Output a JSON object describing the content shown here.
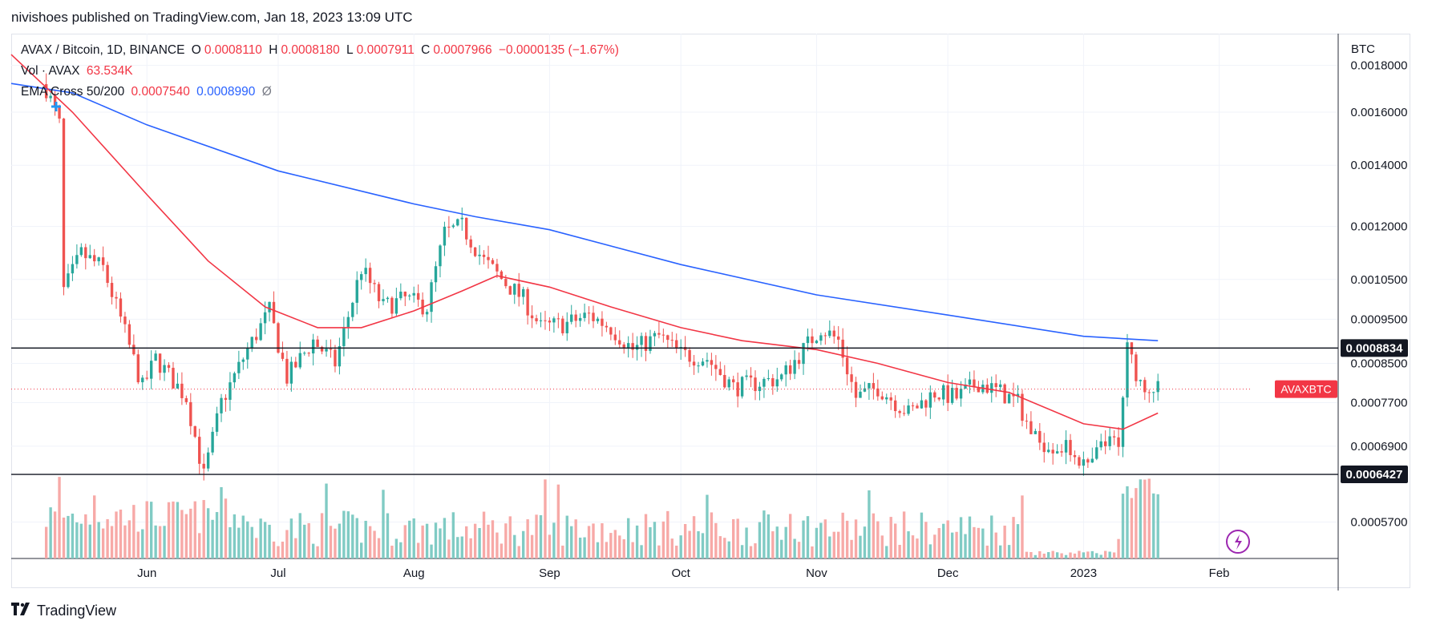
{
  "header": {
    "published": "nivishoes published on TradingView.com, Jan 18, 2023 13:09 UTC"
  },
  "legend": {
    "symbol": "AVAX / Bitcoin, 1D, BINANCE",
    "o_label": "O",
    "o_value": "0.0008110",
    "h_label": "H",
    "h_value": "0.0008180",
    "l_label": "L",
    "l_value": "0.0007911",
    "c_label": "C",
    "c_value": "0.0007966",
    "change": "−0.0000135 (−1.67%)",
    "vol_label": "Vol · AVAX",
    "vol_value": "63.534K",
    "ema_label": "EMA Cross 50/200",
    "ema50_value": "0.0007540",
    "ema200_value": "0.0008990",
    "ema_extra": "Ø"
  },
  "footer": {
    "brand": "TradingView"
  },
  "chart_data": {
    "type": "candlestick",
    "symbol": "AVAXBTC",
    "currency_label": "BTC",
    "scale": "log",
    "ylim": [
      0.00052,
      0.00195
    ],
    "y_ticks": [
      "0.0018000",
      "0.0016000",
      "0.0014000",
      "0.0012000",
      "0.0010500",
      "0.0009500",
      "0.0008500",
      "0.0007700",
      "0.0006900",
      "0.0005700"
    ],
    "x_ticks": [
      "Jun",
      "Jul",
      "Aug",
      "Sep",
      "Oct",
      "Nov",
      "Dec",
      "2023",
      "Feb"
    ],
    "horizontal_lines": [
      {
        "value": 0.0008834,
        "label": "0.0008834"
      },
      {
        "value": 0.0006427,
        "label": "0.0006427"
      }
    ],
    "last_price": {
      "value": 0.0007966,
      "label": "AVAXBTC"
    },
    "colors": {
      "up": "#26a69a",
      "down": "#ef5350",
      "ema50": "#f23645",
      "ema200": "#2962ff",
      "vol_up": "#80cbc4",
      "vol_down": "#f7a9a7"
    },
    "close_series": [
      {
        "date": "2022-05-09",
        "close": 0.0017
      },
      {
        "date": "2022-05-12",
        "close": 0.00155
      },
      {
        "date": "2022-05-13",
        "close": 0.00102
      },
      {
        "date": "2022-05-17",
        "close": 0.00112
      },
      {
        "date": "2022-05-22",
        "close": 0.00108
      },
      {
        "date": "2022-05-26",
        "close": 0.00095
      },
      {
        "date": "2022-05-31",
        "close": 0.0008
      },
      {
        "date": "2022-06-03",
        "close": 0.00086
      },
      {
        "date": "2022-06-10",
        "close": 0.00078
      },
      {
        "date": "2022-06-14",
        "close": 0.00064
      },
      {
        "date": "2022-06-18",
        "close": 0.00077
      },
      {
        "date": "2022-06-24",
        "close": 0.00088
      },
      {
        "date": "2022-06-29",
        "close": 0.00097
      },
      {
        "date": "2022-07-03",
        "close": 0.00082
      },
      {
        "date": "2022-07-09",
        "close": 0.0009
      },
      {
        "date": "2022-07-14",
        "close": 0.00085
      },
      {
        "date": "2022-07-20",
        "close": 0.00108
      },
      {
        "date": "2022-07-25",
        "close": 0.00098
      },
      {
        "date": "2022-07-30",
        "close": 0.001
      },
      {
        "date": "2022-08-04",
        "close": 0.00098
      },
      {
        "date": "2022-08-08",
        "close": 0.00118
      },
      {
        "date": "2022-08-12",
        "close": 0.0012
      },
      {
        "date": "2022-08-17",
        "close": 0.0011
      },
      {
        "date": "2022-08-22",
        "close": 0.00104
      },
      {
        "date": "2022-08-26",
        "close": 0.001
      },
      {
        "date": "2022-08-30",
        "close": 0.00093
      },
      {
        "date": "2022-09-05",
        "close": 0.00094
      },
      {
        "date": "2022-09-10",
        "close": 0.00096
      },
      {
        "date": "2022-09-15",
        "close": 0.00093
      },
      {
        "date": "2022-09-20",
        "close": 0.00088
      },
      {
        "date": "2022-09-26",
        "close": 0.00091
      },
      {
        "date": "2022-10-01",
        "close": 0.00087
      },
      {
        "date": "2022-10-07",
        "close": 0.00086
      },
      {
        "date": "2022-10-13",
        "close": 0.0008
      },
      {
        "date": "2022-10-19",
        "close": 0.00081
      },
      {
        "date": "2022-10-24",
        "close": 0.00082
      },
      {
        "date": "2022-10-29",
        "close": 0.00088
      },
      {
        "date": "2022-11-02",
        "close": 0.00093
      },
      {
        "date": "2022-11-06",
        "close": 0.0009
      },
      {
        "date": "2022-11-10",
        "close": 0.00078
      },
      {
        "date": "2022-11-15",
        "close": 0.0008
      },
      {
        "date": "2022-11-22",
        "close": 0.00075
      },
      {
        "date": "2022-11-28",
        "close": 0.00079
      },
      {
        "date": "2022-12-03",
        "close": 0.00078
      },
      {
        "date": "2022-12-08",
        "close": 0.00081
      },
      {
        "date": "2022-12-13",
        "close": 0.00079
      },
      {
        "date": "2022-12-17",
        "close": 0.00077
      },
      {
        "date": "2022-12-21",
        "close": 0.0007
      },
      {
        "date": "2022-12-26",
        "close": 0.00069
      },
      {
        "date": "2022-12-30",
        "close": 0.00068
      },
      {
        "date": "2023-01-02",
        "close": 0.00065
      },
      {
        "date": "2023-01-05",
        "close": 0.00069
      },
      {
        "date": "2023-01-09",
        "close": 0.0007
      },
      {
        "date": "2023-01-11",
        "close": 0.00088
      },
      {
        "date": "2023-01-14",
        "close": 0.00081
      },
      {
        "date": "2023-01-18",
        "close": 0.0007966
      }
    ],
    "ema50_series": [
      {
        "date": "2022-05-01",
        "value": 0.00185
      },
      {
        "date": "2022-05-15",
        "value": 0.0016
      },
      {
        "date": "2022-06-01",
        "value": 0.0013
      },
      {
        "date": "2022-06-15",
        "value": 0.0011
      },
      {
        "date": "2022-06-28",
        "value": 0.00098
      },
      {
        "date": "2022-07-10",
        "value": 0.00093
      },
      {
        "date": "2022-07-20",
        "value": 0.00093
      },
      {
        "date": "2022-08-01",
        "value": 0.00097
      },
      {
        "date": "2022-08-12",
        "value": 0.00102
      },
      {
        "date": "2022-08-20",
        "value": 0.00106
      },
      {
        "date": "2022-09-01",
        "value": 0.00103
      },
      {
        "date": "2022-09-15",
        "value": 0.00098
      },
      {
        "date": "2022-10-01",
        "value": 0.00093
      },
      {
        "date": "2022-10-15",
        "value": 0.0009
      },
      {
        "date": "2022-11-01",
        "value": 0.00088
      },
      {
        "date": "2022-11-15",
        "value": 0.00085
      },
      {
        "date": "2022-12-01",
        "value": 0.00081
      },
      {
        "date": "2022-12-15",
        "value": 0.00079
      },
      {
        "date": "2023-01-01",
        "value": 0.00073
      },
      {
        "date": "2023-01-10",
        "value": 0.00072
      },
      {
        "date": "2023-01-18",
        "value": 0.00075
      }
    ],
    "ema200_series": [
      {
        "date": "2022-05-01",
        "value": 0.00172
      },
      {
        "date": "2022-05-15",
        "value": 0.00168
      },
      {
        "date": "2022-06-01",
        "value": 0.00155
      },
      {
        "date": "2022-07-01",
        "value": 0.00138
      },
      {
        "date": "2022-08-01",
        "value": 0.00127
      },
      {
        "date": "2022-08-15",
        "value": 0.00123
      },
      {
        "date": "2022-09-01",
        "value": 0.00119
      },
      {
        "date": "2022-10-01",
        "value": 0.00109
      },
      {
        "date": "2022-11-01",
        "value": 0.00101
      },
      {
        "date": "2022-12-01",
        "value": 0.00096
      },
      {
        "date": "2023-01-01",
        "value": 0.00091
      },
      {
        "date": "2023-01-18",
        "value": 0.0009
      }
    ]
  }
}
